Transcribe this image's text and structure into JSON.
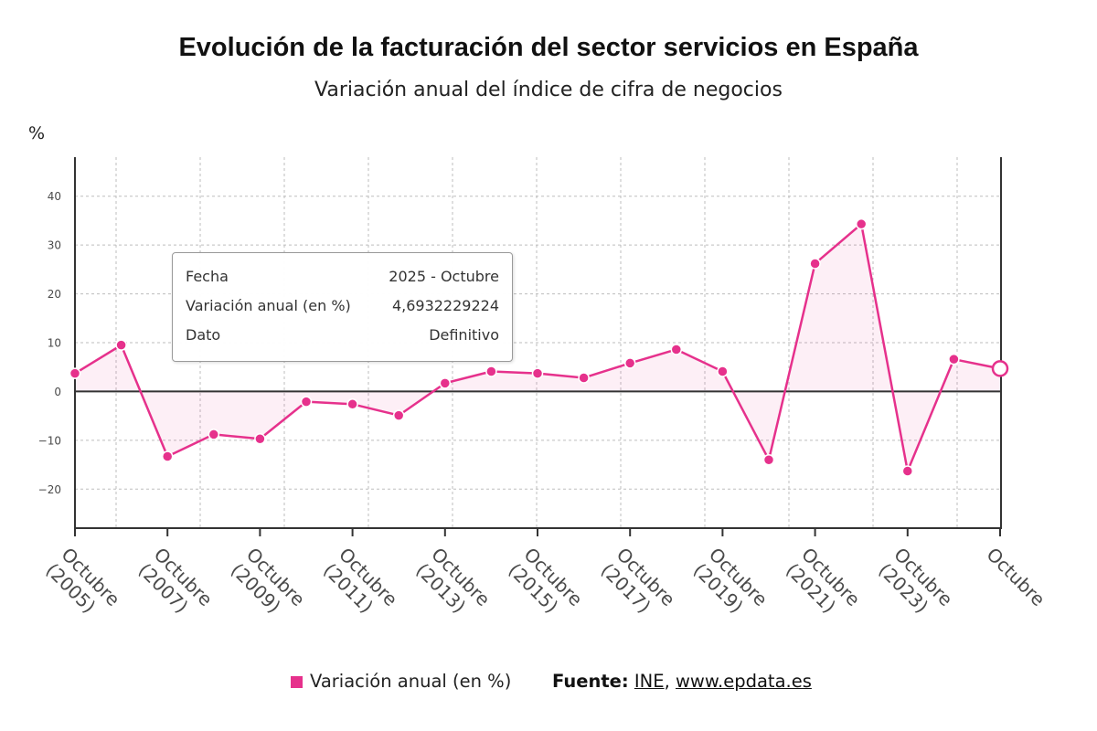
{
  "chart_data": {
    "type": "line",
    "title": "Evolución de la facturación del sector servicios en España",
    "subtitle": "Variación anual del índice de cifra de negocios",
    "xlabel": "",
    "ylabel": "%",
    "x": [
      2005,
      2006,
      2007,
      2008,
      2009,
      2010,
      2011,
      2012,
      2013,
      2014,
      2015,
      2016,
      2017,
      2018,
      2019,
      2020,
      2021,
      2022,
      2023,
      2024,
      2025
    ],
    "series": [
      {
        "name": "Variación anual (en %)",
        "values": [
          3.7,
          9.5,
          -13.3,
          -8.8,
          -9.7,
          -2.1,
          -2.6,
          -4.9,
          1.7,
          4.1,
          3.7,
          2.8,
          5.8,
          8.6,
          4.1,
          -14.0,
          26.2,
          34.3,
          -16.3,
          6.6,
          4.6932229224
        ]
      }
    ],
    "x_ticks": [
      {
        "x": 2005,
        "lines": [
          "Octubre",
          "(2005)"
        ]
      },
      {
        "x": 2007,
        "lines": [
          "Octubre",
          "(2007)"
        ]
      },
      {
        "x": 2009,
        "lines": [
          "Octubre",
          "(2009)"
        ]
      },
      {
        "x": 2011,
        "lines": [
          "Octubre",
          "(2011)"
        ]
      },
      {
        "x": 2013,
        "lines": [
          "Octubre",
          "(2013)"
        ]
      },
      {
        "x": 2015,
        "lines": [
          "Octubre",
          "(2015)"
        ]
      },
      {
        "x": 2017,
        "lines": [
          "Octubre",
          "(2017)"
        ]
      },
      {
        "x": 2019,
        "lines": [
          "Octubre",
          "(2019)"
        ]
      },
      {
        "x": 2021,
        "lines": [
          "Octubre",
          "(2021)"
        ]
      },
      {
        "x": 2023,
        "lines": [
          "Octubre",
          "(2023)"
        ]
      },
      {
        "x": 2025,
        "lines": [
          "Octubre"
        ]
      }
    ],
    "y_ticks": [
      {
        "value": 40,
        "label": "40"
      },
      {
        "value": 30,
        "label": "30"
      },
      {
        "value": 20,
        "label": "20"
      },
      {
        "value": 10,
        "label": "10"
      },
      {
        "value": 0,
        "label": "0"
      },
      {
        "value": -10,
        "label": "−10"
      },
      {
        "value": -20,
        "label": "−20"
      }
    ],
    "xlim": [
      2005,
      2025
    ],
    "ylim": [
      -28,
      48
    ],
    "grid": true,
    "fill_to": 0,
    "highlighted_x": 2025,
    "legend": {
      "placement": "bottom"
    },
    "colors": {
      "line": "#e6318c",
      "fill": "#e6318c",
      "axis": "#333333",
      "grid": "#bdbdbd",
      "tick_text": "#4a4a4a"
    }
  },
  "tooltip": {
    "rows": [
      {
        "label": "Fecha",
        "value": "2025 - Octubre"
      },
      {
        "label": "Variación anual (en %)",
        "value": "4,6932229224"
      },
      {
        "label": "Dato",
        "value": "Definitivo"
      }
    ]
  },
  "source": {
    "prefix": "Fuente:",
    "links": [
      "INE",
      "www.epdata.es"
    ],
    "separator": ","
  }
}
